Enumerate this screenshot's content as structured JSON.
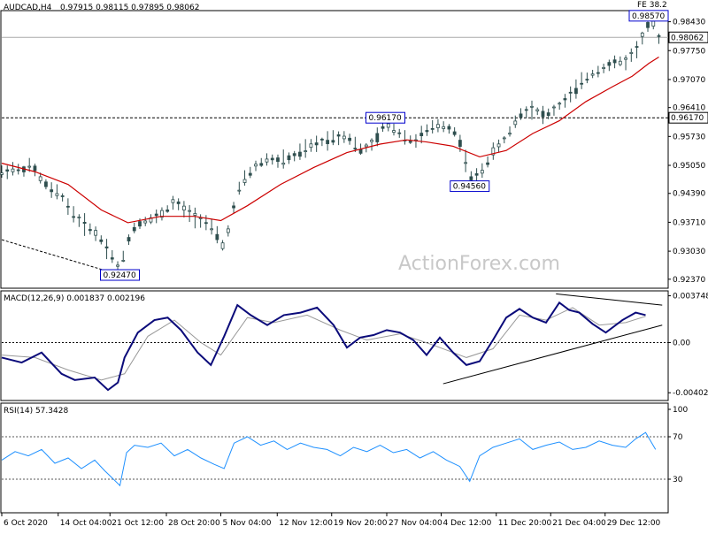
{
  "chart_data": [
    {
      "type": "candlestick",
      "symbol_header": "AUDCAD,H4",
      "ohlc_text": "0.97915 0.98115 0.97895 0.98062",
      "top_right_label": "FE 38.2",
      "watermark": "ActionForex.com",
      "ylim": [
        0.922,
        0.9865
      ],
      "y_ticks": [
        "0.98430",
        "0.97750",
        "0.97070",
        "0.96410",
        "0.95730",
        "0.95050",
        "0.94390",
        "0.93710",
        "0.93030",
        "0.92370"
      ],
      "current_price_label": "0.98062",
      "current_price": 0.98062,
      "level_line_label": "0.96170",
      "level_line": 0.9617,
      "annotations": [
        {
          "text": "0.92470",
          "value": 0.9247,
          "xi": 0.178
        },
        {
          "text": "0.96170",
          "value": 0.9617,
          "xi": 0.578
        },
        {
          "text": "0.94560",
          "value": 0.9456,
          "xi": 0.705
        },
        {
          "text": "0.98570",
          "value": 0.9857,
          "xi": 0.977
        }
      ],
      "close_path": [
        [
          0.0,
          0.9488
        ],
        [
          0.015,
          0.9497
        ],
        [
          0.03,
          0.9492
        ],
        [
          0.045,
          0.9505
        ],
        [
          0.06,
          0.947
        ],
        [
          0.075,
          0.9445
        ],
        [
          0.09,
          0.9435
        ],
        [
          0.105,
          0.9395
        ],
        [
          0.12,
          0.937
        ],
        [
          0.135,
          0.9355
        ],
        [
          0.15,
          0.933
        ],
        [
          0.165,
          0.9295
        ],
        [
          0.178,
          0.9255
        ],
        [
          0.188,
          0.932
        ],
        [
          0.2,
          0.936
        ],
        [
          0.215,
          0.9375
        ],
        [
          0.23,
          0.938
        ],
        [
          0.245,
          0.9395
        ],
        [
          0.26,
          0.942
        ],
        [
          0.275,
          0.94
        ],
        [
          0.29,
          0.9385
        ],
        [
          0.305,
          0.9375
        ],
        [
          0.32,
          0.935
        ],
        [
          0.335,
          0.931
        ],
        [
          0.345,
          0.938
        ],
        [
          0.36,
          0.946
        ],
        [
          0.38,
          0.95
        ],
        [
          0.4,
          0.952
        ],
        [
          0.42,
          0.9515
        ],
        [
          0.44,
          0.9525
        ],
        [
          0.46,
          0.9545
        ],
        [
          0.48,
          0.956
        ],
        [
          0.5,
          0.957
        ],
        [
          0.52,
          0.9575
        ],
        [
          0.54,
          0.954
        ],
        [
          0.56,
          0.9555
        ],
        [
          0.578,
          0.9605
        ],
        [
          0.6,
          0.958
        ],
        [
          0.62,
          0.956
        ],
        [
          0.64,
          0.9585
        ],
        [
          0.66,
          0.96
        ],
        [
          0.68,
          0.959
        ],
        [
          0.695,
          0.9545
        ],
        [
          0.705,
          0.947
        ],
        [
          0.72,
          0.9485
        ],
        [
          0.74,
          0.9535
        ],
        [
          0.76,
          0.957
        ],
        [
          0.78,
          0.9625
        ],
        [
          0.8,
          0.964
        ],
        [
          0.82,
          0.962
        ],
        [
          0.84,
          0.9645
        ],
        [
          0.86,
          0.9675
        ],
        [
          0.88,
          0.971
        ],
        [
          0.9,
          0.973
        ],
        [
          0.92,
          0.9745
        ],
        [
          0.94,
          0.975
        ],
        [
          0.955,
          0.9775
        ],
        [
          0.97,
          0.982
        ],
        [
          0.977,
          0.985
        ],
        [
          0.985,
          0.983
        ],
        [
          0.99,
          0.9806
        ]
      ],
      "ma_path": [
        [
          0.0,
          0.951
        ],
        [
          0.05,
          0.949
        ],
        [
          0.1,
          0.946
        ],
        [
          0.15,
          0.94
        ],
        [
          0.19,
          0.937
        ],
        [
          0.24,
          0.9385
        ],
        [
          0.29,
          0.9385
        ],
        [
          0.33,
          0.9375
        ],
        [
          0.37,
          0.941
        ],
        [
          0.42,
          0.946
        ],
        [
          0.47,
          0.95
        ],
        [
          0.52,
          0.9535
        ],
        [
          0.57,
          0.9555
        ],
        [
          0.61,
          0.9565
        ],
        [
          0.64,
          0.956
        ],
        [
          0.68,
          0.955
        ],
        [
          0.72,
          0.9525
        ],
        [
          0.76,
          0.954
        ],
        [
          0.8,
          0.958
        ],
        [
          0.84,
          0.961
        ],
        [
          0.88,
          0.9655
        ],
        [
          0.92,
          0.969
        ],
        [
          0.95,
          0.9715
        ],
        [
          0.975,
          0.9745
        ],
        [
          0.99,
          0.976
        ]
      ],
      "candle_count": 120
    },
    {
      "type": "line",
      "title": "MACD(12,26,9) 0.001837 0.002196",
      "ylim": [
        -0.0045,
        0.004
      ],
      "y_ticks": [
        "0.003748",
        "0.00",
        "-0.004021"
      ],
      "y_tick_values": [
        0.003748,
        0.0,
        -0.004021
      ],
      "zero_line_label": "0.00",
      "macd_path": [
        [
          0.0,
          -0.0012
        ],
        [
          0.03,
          -0.0016
        ],
        [
          0.06,
          -0.0008
        ],
        [
          0.09,
          -0.0025
        ],
        [
          0.11,
          -0.003
        ],
        [
          0.14,
          -0.0028
        ],
        [
          0.16,
          -0.0038
        ],
        [
          0.175,
          -0.0032
        ],
        [
          0.185,
          -0.0012
        ],
        [
          0.205,
          0.0008
        ],
        [
          0.23,
          0.0018
        ],
        [
          0.25,
          0.002
        ],
        [
          0.27,
          0.001
        ],
        [
          0.295,
          -0.0008
        ],
        [
          0.315,
          -0.0018
        ],
        [
          0.335,
          0.0005
        ],
        [
          0.355,
          0.003
        ],
        [
          0.375,
          0.0022
        ],
        [
          0.4,
          0.0014
        ],
        [
          0.425,
          0.0022
        ],
        [
          0.45,
          0.0024
        ],
        [
          0.475,
          0.0028
        ],
        [
          0.5,
          0.0014
        ],
        [
          0.52,
          -0.0004
        ],
        [
          0.54,
          0.0004
        ],
        [
          0.56,
          0.0006
        ],
        [
          0.58,
          0.001
        ],
        [
          0.6,
          0.0008
        ],
        [
          0.62,
          0.0002
        ],
        [
          0.64,
          -0.001
        ],
        [
          0.66,
          0.0004
        ],
        [
          0.68,
          -0.0008
        ],
        [
          0.7,
          -0.0018
        ],
        [
          0.72,
          -0.0015
        ],
        [
          0.74,
          0.0002
        ],
        [
          0.76,
          0.002
        ],
        [
          0.78,
          0.0027
        ],
        [
          0.8,
          0.002
        ],
        [
          0.82,
          0.0016
        ],
        [
          0.84,
          0.0032
        ],
        [
          0.855,
          0.0026
        ],
        [
          0.87,
          0.0024
        ],
        [
          0.89,
          0.0015
        ],
        [
          0.91,
          0.0008
        ],
        [
          0.935,
          0.0018
        ],
        [
          0.955,
          0.0024
        ],
        [
          0.97,
          0.0022
        ]
      ],
      "signal_path": [
        [
          0.0,
          -0.001
        ],
        [
          0.05,
          -0.0012
        ],
        [
          0.1,
          -0.0022
        ],
        [
          0.15,
          -0.003
        ],
        [
          0.185,
          -0.0025
        ],
        [
          0.22,
          0.0005
        ],
        [
          0.26,
          0.0018
        ],
        [
          0.3,
          0.0
        ],
        [
          0.33,
          -0.001
        ],
        [
          0.37,
          0.002
        ],
        [
          0.41,
          0.0016
        ],
        [
          0.46,
          0.0022
        ],
        [
          0.51,
          0.001
        ],
        [
          0.55,
          0.0002
        ],
        [
          0.6,
          0.0007
        ],
        [
          0.65,
          -0.0002
        ],
        [
          0.7,
          -0.0012
        ],
        [
          0.74,
          -0.0005
        ],
        [
          0.78,
          0.0022
        ],
        [
          0.82,
          0.0018
        ],
        [
          0.86,
          0.0028
        ],
        [
          0.9,
          0.0014
        ],
        [
          0.94,
          0.0016
        ],
        [
          0.97,
          0.0021
        ]
      ],
      "trend_lines": [
        {
          "x1": 0.665,
          "y1": -0.0033,
          "x2": 0.995,
          "y2": 0.0014
        },
        {
          "x1": 0.835,
          "y1": 0.0039,
          "x2": 0.995,
          "y2": 0.003
        }
      ]
    },
    {
      "type": "line",
      "title": "RSI(14) 57.3428",
      "ylim": [
        0,
        100
      ],
      "y_ticks": [
        "100",
        "70",
        "30"
      ],
      "y_tick_values": [
        100,
        70,
        30
      ],
      "rsi_path": [
        [
          0.0,
          48
        ],
        [
          0.02,
          56
        ],
        [
          0.04,
          52
        ],
        [
          0.06,
          58
        ],
        [
          0.08,
          45
        ],
        [
          0.1,
          50
        ],
        [
          0.12,
          40
        ],
        [
          0.14,
          48
        ],
        [
          0.155,
          38
        ],
        [
          0.165,
          32
        ],
        [
          0.178,
          24
        ],
        [
          0.188,
          55
        ],
        [
          0.2,
          62
        ],
        [
          0.22,
          60
        ],
        [
          0.24,
          64
        ],
        [
          0.26,
          52
        ],
        [
          0.28,
          58
        ],
        [
          0.3,
          50
        ],
        [
          0.32,
          44
        ],
        [
          0.335,
          40
        ],
        [
          0.35,
          64
        ],
        [
          0.37,
          70
        ],
        [
          0.39,
          62
        ],
        [
          0.41,
          66
        ],
        [
          0.43,
          58
        ],
        [
          0.45,
          64
        ],
        [
          0.47,
          60
        ],
        [
          0.49,
          58
        ],
        [
          0.51,
          52
        ],
        [
          0.53,
          60
        ],
        [
          0.55,
          56
        ],
        [
          0.57,
          62
        ],
        [
          0.59,
          55
        ],
        [
          0.61,
          58
        ],
        [
          0.63,
          50
        ],
        [
          0.65,
          56
        ],
        [
          0.67,
          48
        ],
        [
          0.69,
          42
        ],
        [
          0.705,
          28
        ],
        [
          0.72,
          52
        ],
        [
          0.74,
          60
        ],
        [
          0.76,
          64
        ],
        [
          0.78,
          68
        ],
        [
          0.8,
          58
        ],
        [
          0.82,
          62
        ],
        [
          0.84,
          65
        ],
        [
          0.86,
          58
        ],
        [
          0.88,
          60
        ],
        [
          0.9,
          66
        ],
        [
          0.92,
          62
        ],
        [
          0.94,
          60
        ],
        [
          0.955,
          68
        ],
        [
          0.97,
          74
        ],
        [
          0.985,
          58
        ]
      ]
    }
  ],
  "x_axis": {
    "labels": [
      "6 Oct 2020",
      "14 Oct 04:00",
      "21 Oct 12:00",
      "28 Oct 20:00",
      "5 Nov 04:00",
      "12 Nov 12:00",
      "19 Nov 20:00",
      "27 Nov 04:00",
      "4 Dec 12:00",
      "11 Dec 20:00",
      "21 Dec 04:00",
      "29 Dec 12:00"
    ],
    "label_positions": [
      0.0,
      0.085,
      0.163,
      0.248,
      0.33,
      0.415,
      0.497,
      0.58,
      0.662,
      0.745,
      0.827,
      0.909
    ]
  },
  "colors": {
    "candle": "#2f4f4f",
    "ma": "#cc0000",
    "macd": "#0b0b7a",
    "signal": "#999999",
    "trend": "#000000",
    "grid": "#000000",
    "watermark": "#c8c8c8",
    "label_box": "#0000cc"
  }
}
